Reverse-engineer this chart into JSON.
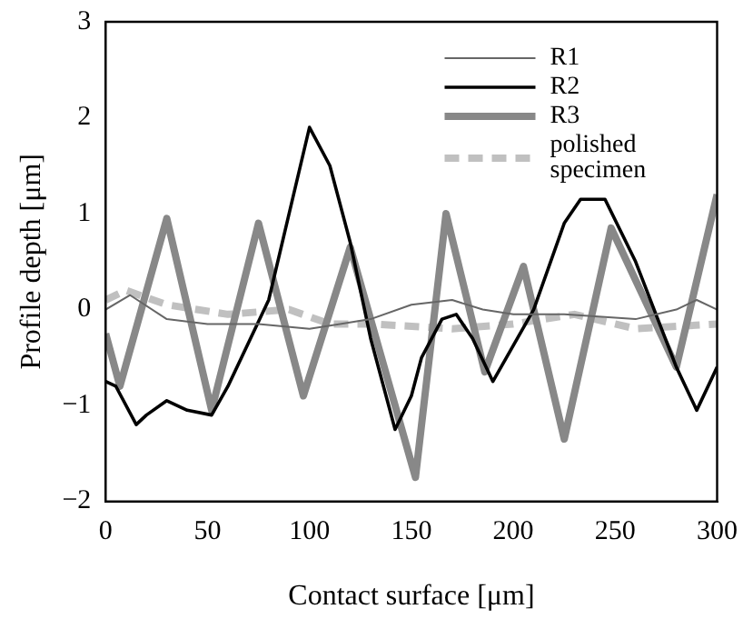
{
  "chart_data": {
    "type": "line",
    "xlabel": "Contact surface [μm]",
    "ylabel": "Profile depth [μm]",
    "xlim": [
      0,
      300
    ],
    "xticks": [
      0,
      50,
      100,
      150,
      200,
      250,
      300
    ],
    "ylim": [
      -2,
      3
    ],
    "yticks": [
      {
        "value": -2,
        "label": "−2"
      },
      {
        "value": -1,
        "label": "−1"
      },
      0,
      1,
      2,
      3
    ],
    "grid": false,
    "legend": "top right",
    "marker": "none",
    "series": [
      {
        "name": "R1",
        "color": "#666666",
        "line_style": "solid",
        "x": [
          0,
          12,
          30,
          50,
          75,
          100,
          115,
          130,
          150,
          170,
          185,
          200,
          225,
          260,
          280,
          290,
          300
        ],
        "values": [
          0,
          0.15,
          -0.1,
          -0.15,
          -0.15,
          -0.2,
          -0.15,
          -0.1,
          0.05,
          0.1,
          0.0,
          -0.05,
          -0.05,
          -0.1,
          0,
          0.1,
          0
        ]
      },
      {
        "name": "R2",
        "color": "#000000",
        "line_style": "solid",
        "x": [
          0,
          5,
          15,
          20,
          30,
          40,
          52,
          60,
          80,
          100,
          110,
          120,
          130,
          142,
          150,
          155,
          165,
          172,
          180,
          190,
          210,
          225,
          233,
          245,
          260,
          280,
          290,
          300
        ],
        "values": [
          -0.75,
          -0.8,
          -1.2,
          -1.1,
          -0.95,
          -1.05,
          -1.1,
          -0.8,
          0.1,
          1.9,
          1.5,
          0.7,
          -0.3,
          -1.25,
          -0.9,
          -0.5,
          -0.1,
          -0.05,
          -0.3,
          -0.75,
          0,
          0.9,
          1.15,
          1.15,
          0.5,
          -0.6,
          -1.05,
          -0.6
        ]
      },
      {
        "name": "R3",
        "color": "#888888",
        "line_style": "solid",
        "x": [
          0,
          7,
          30,
          52,
          75,
          97,
          120,
          152,
          167,
          186,
          205,
          225,
          248,
          280,
          300
        ],
        "values": [
          -0.25,
          -0.8,
          0.95,
          -1.05,
          0.9,
          -0.9,
          0.65,
          -1.75,
          1.0,
          -0.65,
          0.45,
          -1.35,
          0.85,
          -0.6,
          1.2
        ]
      },
      {
        "name": "polished specimen",
        "color": "#c0c0c0",
        "line_style": "dashed",
        "x": [
          0,
          10,
          30,
          60,
          90,
          110,
          130,
          170,
          200,
          230,
          260,
          300
        ],
        "values": [
          0.1,
          0.2,
          0.05,
          -0.05,
          0,
          -0.15,
          -0.15,
          -0.2,
          -0.15,
          -0.05,
          -0.2,
          -0.15
        ]
      }
    ]
  }
}
